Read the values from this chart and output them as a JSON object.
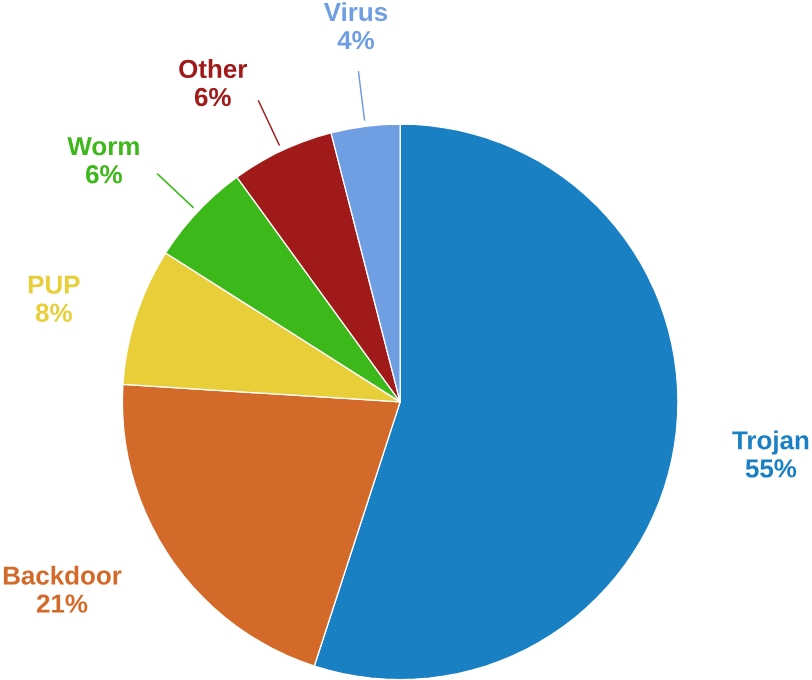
{
  "chart_data": {
    "type": "pie",
    "categories": [
      "Trojan",
      "Backdoor",
      "PUP",
      "Worm",
      "Other",
      "Virus"
    ],
    "values": [
      55,
      21,
      8,
      6,
      6,
      4
    ],
    "value_labels": [
      "55%",
      "21%",
      "8%",
      "6%",
      "6%",
      "4%"
    ],
    "colors": [
      "#1a80c4",
      "#d46a2a",
      "#e8cf3a",
      "#3db81a",
      "#a01a1a",
      "#6f9fe2"
    ]
  }
}
